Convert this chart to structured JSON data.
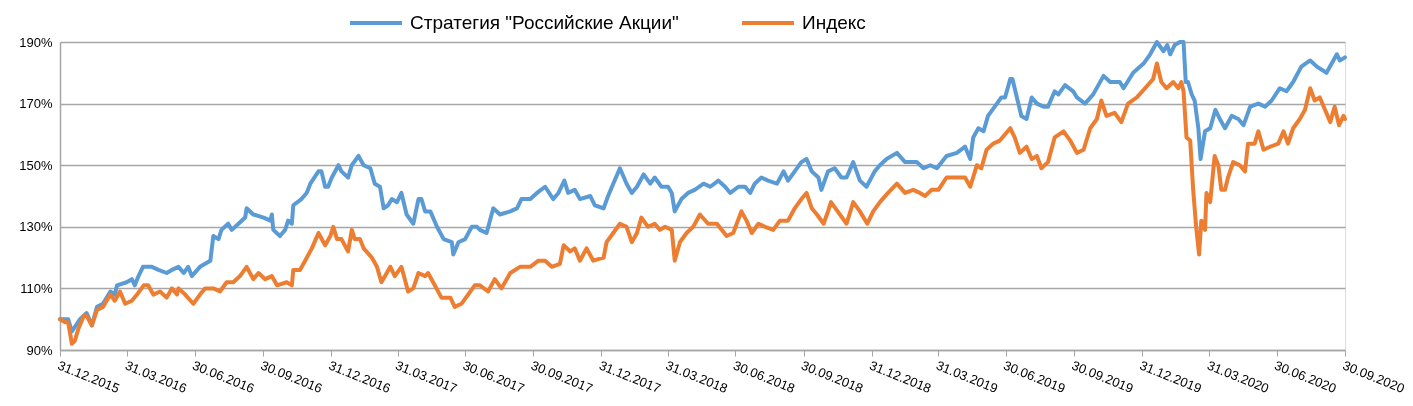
{
  "chart_data": {
    "type": "line",
    "grid": "y",
    "legend": "top",
    "xlim": [
      "2015-12-31",
      "2020-09-30"
    ],
    "xticks": [
      {
        "value": "2015-12-31",
        "label": "31.12.2015"
      },
      {
        "value": "2016-03-31",
        "label": "31.03.2016"
      },
      {
        "value": "2016-06-30",
        "label": "30.06.2016"
      },
      {
        "value": "2016-09-30",
        "label": "30.09.2016"
      },
      {
        "value": "2016-12-31",
        "label": "31.12.2016"
      },
      {
        "value": "2017-03-31",
        "label": "31.03.2017"
      },
      {
        "value": "2017-06-30",
        "label": "30.06.2017"
      },
      {
        "value": "2017-09-30",
        "label": "30.09.2017"
      },
      {
        "value": "2017-12-31",
        "label": "31.12.2017"
      },
      {
        "value": "2018-03-31",
        "label": "31.03.2018"
      },
      {
        "value": "2018-06-30",
        "label": "30.06.2018"
      },
      {
        "value": "2018-09-30",
        "label": "30.09.2018"
      },
      {
        "value": "2018-12-31",
        "label": "31.12.2018"
      },
      {
        "value": "2019-03-31",
        "label": "31.03.2019"
      },
      {
        "value": "2019-06-30",
        "label": "30.06.2019"
      },
      {
        "value": "2019-09-30",
        "label": "30.09.2019"
      },
      {
        "value": "2019-12-31",
        "label": "31.12.2019"
      },
      {
        "value": "2020-03-31",
        "label": "31.03.2020"
      },
      {
        "value": "2020-06-30",
        "label": "30.06.2020"
      },
      {
        "value": "2020-09-30",
        "label": "30.09.2020"
      }
    ],
    "ylim": [
      90,
      190
    ],
    "yticks": [
      {
        "value": 90,
        "label": "90%"
      },
      {
        "value": 110,
        "label": "110%"
      },
      {
        "value": 130,
        "label": "130%"
      },
      {
        "value": 150,
        "label": "150%"
      },
      {
        "value": 170,
        "label": "170%"
      },
      {
        "value": 190,
        "label": "190%"
      }
    ],
    "series": [
      {
        "name": "Стратегия \"Российские Акции\"",
        "color": "#5b9bd5",
        "x": [
          "2015-12-31",
          "2016-01-11",
          "2016-01-16",
          "2016-01-27",
          "2016-02-05",
          "2016-02-12",
          "2016-02-19",
          "2016-02-27",
          "2016-03-08",
          "2016-03-14",
          "2016-03-17",
          "2016-03-30",
          "2016-04-06",
          "2016-04-10",
          "2016-04-15",
          "2016-04-21",
          "2016-05-03",
          "2016-05-12",
          "2016-05-23",
          "2016-05-30",
          "2016-06-08",
          "2016-06-15",
          "2016-06-21",
          "2016-06-26",
          "2016-07-07",
          "2016-07-21",
          "2016-07-25",
          "2016-08-01",
          "2016-08-05",
          "2016-08-14",
          "2016-08-19",
          "2016-08-28",
          "2016-09-06",
          "2016-09-08",
          "2016-09-17",
          "2016-10-01",
          "2016-10-10",
          "2016-10-12",
          "2016-10-14",
          "2016-10-23",
          "2016-10-30",
          "2016-11-03",
          "2016-11-08",
          "2016-11-10",
          "2016-11-21",
          "2016-11-28",
          "2016-12-03",
          "2016-12-14",
          "2016-12-18",
          "2016-12-23",
          "2016-12-27",
          "2017-01-01",
          "2017-01-10",
          "2017-01-14",
          "2017-01-23",
          "2017-01-28",
          "2017-02-06",
          "2017-02-13",
          "2017-02-22",
          "2017-02-28",
          "2017-03-07",
          "2017-03-12",
          "2017-03-18",
          "2017-03-23",
          "2017-03-30",
          "2017-04-05",
          "2017-04-12",
          "2017-04-21",
          "2017-04-28",
          "2017-05-02",
          "2017-05-07",
          "2017-05-14",
          "2017-05-23",
          "2017-06-01",
          "2017-06-12",
          "2017-06-14",
          "2017-06-21",
          "2017-06-30",
          "2017-07-09",
          "2017-07-16",
          "2017-07-20",
          "2017-07-29",
          "2017-08-07",
          "2017-08-16",
          "2017-08-30",
          "2017-09-08",
          "2017-09-14",
          "2017-09-26",
          "2017-10-05",
          "2017-10-16",
          "2017-10-27",
          "2017-11-03",
          "2017-11-11",
          "2017-11-16",
          "2017-11-25",
          "2017-12-02",
          "2017-12-16",
          "2017-12-22",
          "2018-01-03",
          "2018-01-09",
          "2018-01-16",
          "2018-01-25",
          "2018-02-03",
          "2018-02-10",
          "2018-02-17",
          "2018-02-26",
          "2018-03-07",
          "2018-03-13",
          "2018-03-22",
          "2018-03-31",
          "2018-04-05",
          "2018-04-09",
          "2018-04-18",
          "2018-04-27",
          "2018-05-06",
          "2018-05-18",
          "2018-05-27",
          "2018-06-07",
          "2018-06-16",
          "2018-06-23",
          "2018-07-04",
          "2018-07-13",
          "2018-07-20",
          "2018-07-26",
          "2018-08-04",
          "2018-08-13",
          "2018-08-25",
          "2018-09-03",
          "2018-09-09",
          "2018-09-18",
          "2018-09-27",
          "2018-10-04",
          "2018-10-11",
          "2018-10-20",
          "2018-10-24",
          "2018-11-02",
          "2018-11-11",
          "2018-11-20",
          "2018-11-27",
          "2018-12-06",
          "2018-12-15",
          "2018-12-24",
          "2019-01-04",
          "2019-01-11",
          "2019-01-20",
          "2019-02-03",
          "2019-02-14",
          "2019-03-02",
          "2019-03-11",
          "2019-03-20",
          "2019-03-29",
          "2019-04-11",
          "2019-04-25",
          "2019-05-06",
          "2019-05-13",
          "2019-05-17",
          "2019-05-24",
          "2019-05-31",
          "2019-06-06",
          "2019-06-18",
          "2019-06-24",
          "2019-06-29",
          "2019-07-06",
          "2019-07-09",
          "2019-07-15",
          "2019-07-21",
          "2019-07-28",
          "2019-08-04",
          "2019-08-11",
          "2019-08-20",
          "2019-08-26",
          "2019-09-04",
          "2019-09-09",
          "2019-09-18",
          "2019-09-29",
          "2019-10-04",
          "2019-10-15",
          "2019-10-26",
          "2019-11-09",
          "2019-11-18",
          "2019-12-01",
          "2019-12-06",
          "2019-12-19",
          "2020-01-02",
          "2020-01-11",
          "2020-01-20",
          "2020-01-29",
          "2020-02-03",
          "2020-02-07",
          "2020-02-13",
          "2020-02-20",
          "2020-02-25",
          "2020-02-28",
          "2020-03-02",
          "2020-03-07",
          "2020-03-11",
          "2020-03-16",
          "2020-03-19",
          "2020-03-25",
          "2020-04-01",
          "2020-04-08",
          "2020-04-14",
          "2020-04-21",
          "2020-04-30",
          "2020-05-09",
          "2020-05-16",
          "2020-05-25",
          "2020-06-05",
          "2020-06-14",
          "2020-06-23",
          "2020-07-04",
          "2020-07-13",
          "2020-07-22",
          "2020-08-02",
          "2020-08-14",
          "2020-08-23",
          "2020-09-05",
          "2020-09-19",
          "2020-09-23",
          "2020-09-30"
        ],
        "values": [
          100,
          100,
          96,
          100,
          102,
          98,
          104,
          105,
          109,
          108,
          111,
          112,
          113,
          111,
          114,
          117,
          117,
          116,
          115,
          116,
          117,
          115,
          117,
          114,
          117,
          119,
          127,
          126,
          129,
          131,
          129,
          131,
          133,
          136,
          134,
          133,
          132,
          134,
          129,
          127,
          129,
          132,
          131,
          137,
          139,
          141,
          144,
          148,
          148,
          143,
          143,
          146,
          150,
          148,
          146,
          150,
          153,
          150,
          149,
          144,
          143,
          136,
          137,
          139,
          138,
          141,
          134,
          131,
          139,
          139,
          135,
          135,
          130,
          126,
          125,
          121,
          125,
          126,
          130,
          130,
          129,
          128,
          136,
          134,
          135,
          136,
          139,
          139,
          141,
          143,
          139,
          141,
          145,
          141,
          142,
          139,
          140,
          137,
          136,
          140,
          144,
          149,
          144,
          141,
          143,
          147,
          144,
          146,
          143,
          143,
          141,
          135,
          139,
          141,
          142,
          144,
          143,
          145,
          143,
          141,
          143,
          143,
          141,
          144,
          146,
          145,
          144,
          148,
          145,
          148,
          151,
          152,
          148,
          146,
          142,
          148,
          149,
          146,
          146,
          151,
          145,
          143,
          148,
          150,
          152,
          154,
          151,
          151,
          149,
          150,
          149,
          153,
          154,
          156,
          152,
          159,
          162,
          161,
          166,
          170,
          172,
          172,
          178,
          178,
          172,
          166,
          165,
          172,
          170,
          169,
          169,
          174,
          173,
          176,
          174,
          172,
          170,
          173,
          179,
          177,
          177,
          175,
          180,
          183,
          186,
          190,
          187,
          189,
          186,
          189,
          190,
          190,
          177,
          177,
          173,
          171,
          162,
          152,
          161,
          162,
          168,
          165,
          162,
          166,
          165,
          163,
          169,
          170,
          169,
          171,
          175,
          174,
          177,
          182,
          184,
          182,
          180,
          186,
          184,
          185
        ]
      },
      {
        "name": "Индекс",
        "color": "#ed7d31",
        "x": [
          "2015-12-31",
          "2016-01-07",
          "2016-01-11",
          "2016-01-16",
          "2016-01-20",
          "2016-01-25",
          "2016-02-01",
          "2016-02-05",
          "2016-02-12",
          "2016-02-19",
          "2016-02-27",
          "2016-03-08",
          "2016-03-14",
          "2016-03-21",
          "2016-03-28",
          "2016-04-06",
          "2016-04-13",
          "2016-04-22",
          "2016-04-28",
          "2016-05-05",
          "2016-05-14",
          "2016-05-23",
          "2016-05-30",
          "2016-06-06",
          "2016-06-08",
          "2016-06-17",
          "2016-06-28",
          "2016-07-07",
          "2016-07-14",
          "2016-07-25",
          "2016-08-03",
          "2016-08-12",
          "2016-08-21",
          "2016-08-30",
          "2016-09-08",
          "2016-09-17",
          "2016-09-24",
          "2016-10-03",
          "2016-10-12",
          "2016-10-19",
          "2016-11-01",
          "2016-11-08",
          "2016-11-10",
          "2016-11-19",
          "2016-11-26",
          "2016-12-05",
          "2016-12-14",
          "2016-12-23",
          "2016-12-30",
          "2017-01-03",
          "2017-01-08",
          "2017-01-14",
          "2017-01-23",
          "2017-01-28",
          "2017-02-01",
          "2017-02-08",
          "2017-02-13",
          "2017-02-24",
          "2017-03-03",
          "2017-03-09",
          "2017-03-21",
          "2017-03-27",
          "2017-04-05",
          "2017-04-14",
          "2017-04-21",
          "2017-04-28",
          "2017-05-07",
          "2017-05-11",
          "2017-05-20",
          "2017-05-29",
          "2017-06-10",
          "2017-06-16",
          "2017-06-25",
          "2017-07-04",
          "2017-07-13",
          "2017-07-20",
          "2017-07-31",
          "2017-08-09",
          "2017-08-18",
          "2017-08-30",
          "2017-09-12",
          "2017-09-26",
          "2017-10-07",
          "2017-10-16",
          "2017-10-25",
          "2017-11-05",
          "2017-11-10",
          "2017-11-19",
          "2017-11-25",
          "2017-12-02",
          "2017-12-11",
          "2017-12-20",
          "2018-01-03",
          "2018-01-07",
          "2018-01-16",
          "2018-01-25",
          "2018-02-03",
          "2018-02-10",
          "2018-02-17",
          "2018-02-23",
          "2018-03-04",
          "2018-03-13",
          "2018-03-20",
          "2018-03-27",
          "2018-04-05",
          "2018-04-09",
          "2018-04-16",
          "2018-04-25",
          "2018-05-04",
          "2018-05-13",
          "2018-05-24",
          "2018-06-05",
          "2018-06-18",
          "2018-06-27",
          "2018-07-08",
          "2018-07-15",
          "2018-07-22",
          "2018-07-31",
          "2018-08-09",
          "2018-08-20",
          "2018-08-29",
          "2018-09-09",
          "2018-09-18",
          "2018-09-27",
          "2018-10-04",
          "2018-10-11",
          "2018-10-18",
          "2018-10-27",
          "2018-11-02",
          "2018-11-06",
          "2018-11-15",
          "2018-11-27",
          "2018-12-06",
          "2018-12-15",
          "2018-12-25",
          "2019-01-02",
          "2019-01-11",
          "2019-01-22",
          "2019-02-03",
          "2019-02-14",
          "2019-02-25",
          "2019-03-06",
          "2019-03-13",
          "2019-03-22",
          "2019-03-31",
          "2019-04-11",
          "2019-04-22",
          "2019-05-06",
          "2019-05-13",
          "2019-05-22",
          "2019-05-28",
          "2019-06-04",
          "2019-06-13",
          "2019-06-22",
          "2019-07-06",
          "2019-07-12",
          "2019-07-19",
          "2019-07-28",
          "2019-08-04",
          "2019-08-11",
          "2019-08-17",
          "2019-08-26",
          "2019-09-04",
          "2019-09-16",
          "2019-09-25",
          "2019-10-04",
          "2019-10-13",
          "2019-10-22",
          "2019-10-31",
          "2019-11-06",
          "2019-11-13",
          "2019-11-24",
          "2019-12-03",
          "2019-12-12",
          "2019-12-24",
          "2020-01-04",
          "2020-01-15",
          "2020-01-20",
          "2020-01-26",
          "2020-02-02",
          "2020-02-11",
          "2020-02-18",
          "2020-02-22",
          "2020-02-25",
          "2020-02-29",
          "2020-03-05",
          "2020-03-09",
          "2020-03-13",
          "2020-03-17",
          "2020-03-20",
          "2020-03-25",
          "2020-03-27",
          "2020-04-01",
          "2020-04-07",
          "2020-04-12",
          "2020-04-16",
          "2020-04-21",
          "2020-04-25",
          "2020-05-02",
          "2020-05-11",
          "2020-05-18",
          "2020-05-22",
          "2020-05-31",
          "2020-06-05",
          "2020-06-12",
          "2020-06-21",
          "2020-07-02",
          "2020-07-09",
          "2020-07-15",
          "2020-07-22",
          "2020-07-31",
          "2020-08-07",
          "2020-08-14",
          "2020-08-20",
          "2020-08-27",
          "2020-09-03",
          "2020-09-10",
          "2020-09-16",
          "2020-09-22",
          "2020-09-28",
          "2020-09-30"
        ],
        "values": [
          100,
          99,
          99,
          92,
          93,
          97,
          101,
          101,
          98,
          103,
          104,
          108,
          106,
          109,
          105,
          106,
          108,
          111,
          111,
          108,
          109,
          107,
          110,
          108,
          110,
          108,
          105,
          108,
          110,
          110,
          109,
          112,
          112,
          114,
          117,
          113,
          115,
          113,
          114,
          111,
          112,
          111,
          116,
          116,
          119,
          123,
          128,
          124,
          127,
          130,
          126,
          126,
          122,
          129,
          126,
          126,
          123,
          120,
          117,
          112,
          117,
          114,
          117,
          109,
          110,
          115,
          114,
          115,
          111,
          107,
          107,
          104,
          105,
          108,
          111,
          111,
          109,
          113,
          110,
          115,
          117,
          117,
          119,
          119,
          117,
          118,
          124,
          122,
          123,
          119,
          123,
          119,
          120,
          125,
          128,
          131,
          130,
          125,
          128,
          133,
          130,
          131,
          129,
          130,
          129,
          119,
          125,
          128,
          130,
          134,
          131,
          131,
          127,
          128,
          135,
          132,
          128,
          131,
          130,
          129,
          132,
          132,
          136,
          139,
          141,
          136,
          134,
          131,
          135,
          138,
          135,
          131,
          138,
          135,
          131,
          135,
          138,
          141,
          144,
          141,
          142,
          141,
          140,
          142,
          142,
          146,
          146,
          146,
          143,
          150,
          149,
          155,
          157,
          158,
          162,
          159,
          154,
          156,
          152,
          153,
          149,
          151,
          159,
          161,
          158,
          154,
          155,
          162,
          165,
          171,
          166,
          167,
          164,
          170,
          172,
          175,
          178,
          183,
          177,
          175,
          177,
          175,
          177,
          174,
          159,
          158,
          142,
          130,
          121,
          132,
          129,
          141,
          138,
          153,
          150,
          142,
          142,
          146,
          151,
          150,
          148,
          157,
          157,
          161,
          155,
          156,
          157,
          161,
          157,
          162,
          165,
          168,
          175,
          171,
          172,
          168,
          164,
          169,
          163,
          166,
          165
        ]
      }
    ]
  }
}
